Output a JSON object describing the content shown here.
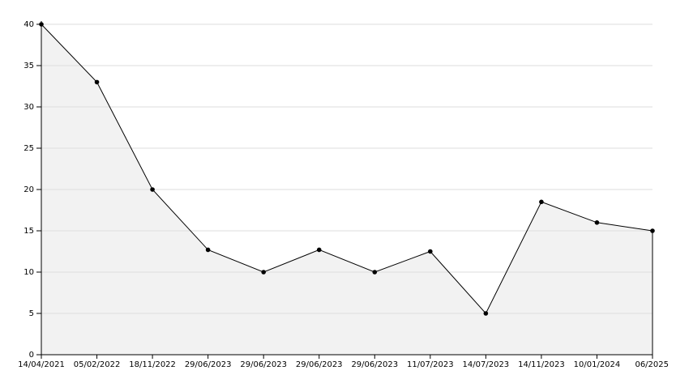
{
  "chart_data": {
    "type": "area",
    "categories": [
      "14/04/2021",
      "05/02/2022",
      "18/11/2022",
      "29/06/2023",
      "29/06/2023",
      "29/06/2023",
      "29/06/2023",
      "11/07/2023",
      "14/07/2023",
      "14/11/2023",
      "10/01/2024",
      "06/2025"
    ],
    "series": [
      {
        "color": "#000000",
        "fill": "#f2f2f2",
        "values": [
          40,
          33,
          20,
          12.7,
          10,
          12.7,
          10,
          12.5,
          5,
          18.5,
          16,
          15
        ]
      }
    ],
    "ylim": [
      0,
      40
    ],
    "yticks": [
      0,
      5,
      10,
      15,
      20,
      25,
      30,
      35,
      40
    ],
    "grid": true
  }
}
